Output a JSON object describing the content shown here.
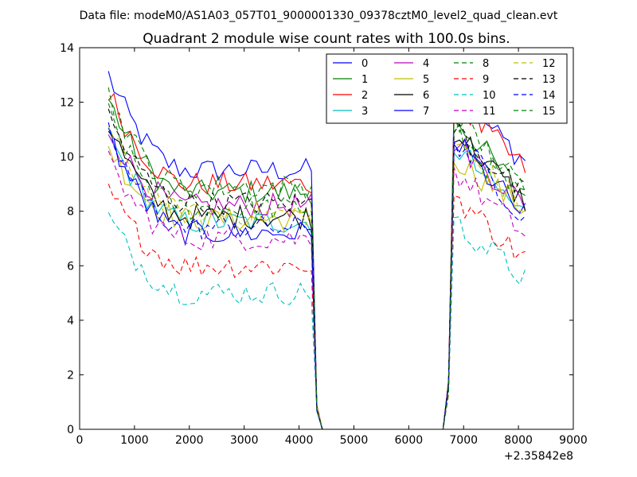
{
  "chart_data": {
    "type": "line",
    "suptitle": "Data file: modeM0/AS1A03_057T01_9000001330_09378cztM0_level2_quad_clean.evt",
    "title": "Quadrant 2 module wise count rates with 100.0s bins.",
    "xlabel": "",
    "ylabel": "",
    "x_offset_label": "+2.35842e8",
    "xlim": [
      0,
      9000
    ],
    "ylim": [
      0,
      14
    ],
    "xticks": [
      "0",
      "1000",
      "2000",
      "3000",
      "4000",
      "5000",
      "6000",
      "7000",
      "8000",
      "9000"
    ],
    "yticks": [
      "0",
      "2",
      "4",
      "6",
      "8",
      "10",
      "12",
      "14"
    ],
    "legend_position": "top-right",
    "x": [
      525,
      625,
      725,
      825,
      925,
      1025,
      1125,
      1225,
      1325,
      1425,
      1525,
      1625,
      1725,
      1825,
      1925,
      2025,
      2125,
      2225,
      2325,
      2425,
      2525,
      2625,
      2725,
      2825,
      2925,
      3025,
      3125,
      3225,
      3325,
      3425,
      3525,
      3625,
      3725,
      3825,
      3925,
      4025,
      4125,
      4225,
      4325,
      4425,
      4525,
      4625,
      4725,
      4825,
      4925,
      5025,
      5125,
      5225,
      5325,
      5425,
      5525,
      5625,
      5725,
      5825,
      5925,
      6025,
      6125,
      6225,
      6325,
      6425,
      6525,
      6625,
      6725,
      6825,
      6925,
      7025,
      7125,
      7225,
      7325,
      7425,
      7525,
      7625,
      7725,
      7825,
      7925,
      8025,
      8125
    ],
    "series": [
      {
        "name": "0",
        "color": "#0000ff",
        "dash": "solid",
        "pre": 13.0,
        "pre_end": 9.5,
        "post": 12.4,
        "post_end": 9.9
      },
      {
        "name": "1",
        "color": "#008000",
        "dash": "solid",
        "pre": 12.1,
        "pre_end": 8.7,
        "post": 11.5,
        "post_end": 8.6
      },
      {
        "name": "2",
        "color": "#ff0000",
        "dash": "solid",
        "pre": 12.4,
        "pre_end": 9.0,
        "post": 12.1,
        "post_end": 9.6
      },
      {
        "name": "3",
        "color": "#00bfbf",
        "dash": "solid",
        "pre": 10.8,
        "pre_end": 7.6,
        "post": 10.4,
        "post_end": 7.9
      },
      {
        "name": "4",
        "color": "#bf00bf",
        "dash": "solid",
        "pre": 11.0,
        "pre_end": 8.2,
        "post": 10.6,
        "post_end": 8.3
      },
      {
        "name": "5",
        "color": "#bfbf00",
        "dash": "solid",
        "pre": 10.4,
        "pre_end": 7.7,
        "post": 10.0,
        "post_end": 8.1
      },
      {
        "name": "6",
        "color": "#000000",
        "dash": "solid",
        "pre": 11.2,
        "pre_end": 7.8,
        "post": 11.0,
        "post_end": 8.4
      },
      {
        "name": "7",
        "color": "#0000ff",
        "dash": "solid",
        "pre": 10.9,
        "pre_end": 7.2,
        "post": 10.6,
        "post_end": 7.9
      },
      {
        "name": "8",
        "color": "#008000",
        "dash": "dashed",
        "pre": 11.6,
        "pre_end": 8.1,
        "post": 10.9,
        "post_end": 8.4
      },
      {
        "name": "9",
        "color": "#ff0000",
        "dash": "dashed",
        "pre": 8.8,
        "pre_end": 6.0,
        "post": 8.6,
        "post_end": 6.3
      },
      {
        "name": "10",
        "color": "#00bfbf",
        "dash": "dashed",
        "pre": 7.8,
        "pre_end": 5.0,
        "post": 7.6,
        "post_end": 5.6
      },
      {
        "name": "11",
        "color": "#bf00bf",
        "dash": "dashed",
        "pre": 9.8,
        "pre_end": 7.0,
        "post": 9.5,
        "post_end": 7.2
      },
      {
        "name": "12",
        "color": "#bfbf00",
        "dash": "dashed",
        "pre": 11.0,
        "pre_end": 7.9,
        "post": 10.5,
        "post_end": 8.2
      },
      {
        "name": "13",
        "color": "#000000",
        "dash": "dashed",
        "pre": 11.5,
        "pre_end": 8.3,
        "post": 11.1,
        "post_end": 8.6
      },
      {
        "name": "14",
        "color": "#0000ff",
        "dash": "dashed",
        "pre": 10.9,
        "pre_end": 7.4,
        "post": 10.7,
        "post_end": 7.9
      },
      {
        "name": "15",
        "color": "#008000",
        "dash": "dashed",
        "pre": 12.3,
        "pre_end": 8.9,
        "post": 11.6,
        "post_end": 8.8
      }
    ]
  }
}
